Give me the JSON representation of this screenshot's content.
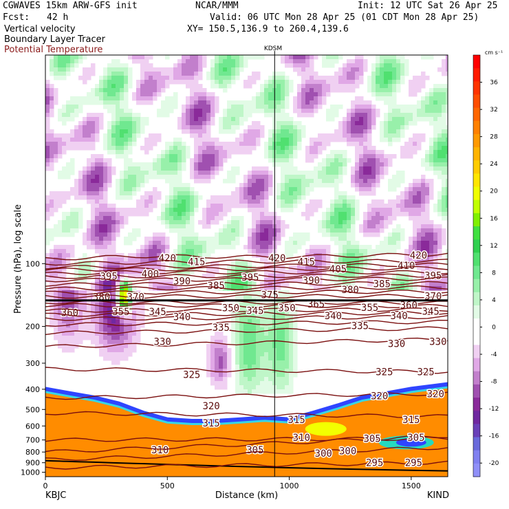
{
  "header": {
    "model": "CGWAVES 15km ARW-GFS init",
    "org": "NCAR/MMM",
    "init": "Init: 12 UTC Sat 26 Apr 25",
    "fcst_label": "Fcst:",
    "fcst_value": "42 h",
    "valid": "Valid: 06 UTC Mon 28 Apr 25 (01 CDT Mon 28 Apr 25)",
    "field1": "Vertical velocity",
    "field2": "Boundary Layer Tracer",
    "field3": "Potential Temperature",
    "xy": "XY= 150.5,136.9 to 260.4,139.6",
    "station_mark": "KDSM"
  },
  "colors": {
    "theta_line": "#7a0e0e",
    "tropo_line": "#000000",
    "frame": "#000000"
  },
  "chart_data": {
    "type": "heatmap",
    "x_axis": {
      "label": "Distance (km)",
      "range": [
        0,
        1650
      ],
      "ticks": [
        0,
        500,
        1000,
        1500
      ],
      "left_station": "KBJC",
      "right_station": "KIND",
      "marker_x": 940
    },
    "y_axis": {
      "label": "Pressure (hPa), log scale",
      "scale": "log",
      "range": [
        1050,
        10
      ],
      "ticks": [
        100,
        200,
        300,
        400,
        500,
        600,
        700,
        800,
        900,
        1000
      ]
    },
    "colorbar": {
      "unit": "cm s⁻¹",
      "tick_labels": [
        36,
        32,
        28,
        24,
        20,
        16,
        12,
        8,
        4,
        0,
        -4,
        -8,
        -12,
        -16,
        -20
      ],
      "levels": [
        {
          "v": 40,
          "c": "#ff0000"
        },
        {
          "v": 38,
          "c": "#ff1a00"
        },
        {
          "v": 36,
          "c": "#ff3300"
        },
        {
          "v": 34,
          "c": "#ff4d00"
        },
        {
          "v": 32,
          "c": "#ff6600"
        },
        {
          "v": 30,
          "c": "#ff8000"
        },
        {
          "v": 28,
          "c": "#ff9900"
        },
        {
          "v": 26,
          "c": "#ffb300"
        },
        {
          "v": 24,
          "c": "#ffcc00"
        },
        {
          "v": 22,
          "c": "#ffe600"
        },
        {
          "v": 20,
          "c": "#f0ff00"
        },
        {
          "v": 18,
          "c": "#c0ff00"
        },
        {
          "v": 16,
          "c": "#80f000"
        },
        {
          "v": 14,
          "c": "#40e040"
        },
        {
          "v": 12,
          "c": "#30d050"
        },
        {
          "v": 10,
          "c": "#50e070"
        },
        {
          "v": 8,
          "c": "#70e890"
        },
        {
          "v": 6,
          "c": "#98f0aa"
        },
        {
          "v": 4,
          "c": "#bff6c8"
        },
        {
          "v": 2,
          "c": "#e2fbe6"
        },
        {
          "v": 0,
          "c": "#ffffff"
        },
        {
          "v": -2,
          "c": "#ffffff"
        },
        {
          "v": -4,
          "c": "#f0d0f2"
        },
        {
          "v": -6,
          "c": "#e0a8e6"
        },
        {
          "v": -8,
          "c": "#c27fcc"
        },
        {
          "v": -10,
          "c": "#a050b0"
        },
        {
          "v": -12,
          "c": "#8a2a9a"
        },
        {
          "v": -14,
          "c": "#7028a0"
        },
        {
          "v": -16,
          "c": "#6a40b8"
        },
        {
          "v": -18,
          "c": "#6a6adb"
        },
        {
          "v": -20,
          "c": "#8080f0"
        },
        {
          "v": -22,
          "c": "#9090f8"
        }
      ]
    },
    "tropopause_pressure_hPa": 150,
    "tracer_top": [
      [
        0,
        400
      ],
      [
        100,
        420
      ],
      [
        200,
        440
      ],
      [
        300,
        470
      ],
      [
        400,
        520
      ],
      [
        500,
        560
      ],
      [
        600,
        570
      ],
      [
        700,
        570
      ],
      [
        800,
        560
      ],
      [
        900,
        550
      ],
      [
        1000,
        560
      ],
      [
        1100,
        520
      ],
      [
        1200,
        480
      ],
      [
        1300,
        440
      ],
      [
        1400,
        420
      ],
      [
        1500,
        400
      ],
      [
        1650,
        380
      ]
    ],
    "theta_lines": [
      {
        "theta": 420,
        "pts": [
          [
            0,
            95
          ],
          [
            400,
            92
          ],
          [
            900,
            93
          ],
          [
            1650,
            90
          ]
        ],
        "labels": [
          [
            500,
            94
          ],
          [
            950,
            94
          ],
          [
            1530,
            91
          ]
        ]
      },
      {
        "theta": 415,
        "pts": [
          [
            0,
            100
          ],
          [
            600,
            98
          ],
          [
            1650,
            97
          ]
        ],
        "labels": [
          [
            620,
            98
          ],
          [
            1070,
            98
          ]
        ]
      },
      {
        "theta": 410,
        "pts": [
          [
            0,
            104
          ],
          [
            700,
            103
          ],
          [
            1650,
            101
          ]
        ],
        "labels": [
          [
            1480,
            102
          ]
        ]
      },
      {
        "theta": 405,
        "pts": [
          [
            0,
            107
          ],
          [
            1650,
            105
          ]
        ],
        "labels": [
          [
            1200,
            106
          ]
        ]
      },
      {
        "theta": 400,
        "pts": [
          [
            0,
            112
          ],
          [
            300,
            110
          ],
          [
            1650,
            110
          ]
        ],
        "labels": [
          [
            430,
            112
          ]
        ]
      },
      {
        "theta": 395,
        "pts": [
          [
            0,
            116
          ],
          [
            300,
            115
          ],
          [
            1650,
            114
          ]
        ],
        "labels": [
          [
            260,
            115
          ],
          [
            840,
            116
          ],
          [
            1590,
            114
          ]
        ]
      },
      {
        "theta": 390,
        "pts": [
          [
            0,
            120
          ],
          [
            1650,
            118
          ]
        ],
        "labels": [
          [
            560,
            121
          ],
          [
            1090,
            120
          ]
        ]
      },
      {
        "theta": 385,
        "pts": [
          [
            0,
            126
          ],
          [
            1650,
            124
          ]
        ],
        "labels": [
          [
            700,
            127
          ],
          [
            1380,
            125
          ]
        ]
      },
      {
        "theta": 380,
        "pts": [
          [
            0,
            132
          ],
          [
            1650,
            130
          ]
        ],
        "labels": [
          [
            230,
            144
          ],
          [
            1250,
            133
          ]
        ]
      },
      {
        "theta": 375,
        "pts": [
          [
            0,
            138
          ],
          [
            1650,
            136
          ]
        ],
        "labels": [
          [
            920,
            141
          ]
        ]
      },
      {
        "theta": 370,
        "pts": [
          [
            0,
            144
          ],
          [
            1650,
            143
          ]
        ],
        "labels": [
          [
            370,
            144
          ],
          [
            1590,
            143
          ]
        ]
      },
      {
        "theta": 365,
        "pts": [
          [
            0,
            153
          ],
          [
            1650,
            154
          ]
        ],
        "labels": [
          [
            1110,
            156
          ]
        ]
      },
      {
        "theta": 360,
        "pts": [
          [
            0,
            158
          ],
          [
            1650,
            160
          ]
        ],
        "labels": [
          [
            100,
            172
          ],
          [
            1490,
            158
          ]
        ]
      },
      {
        "theta": 355,
        "pts": [
          [
            0,
            168
          ],
          [
            1650,
            166
          ]
        ],
        "labels": [
          [
            310,
            170
          ],
          [
            1330,
            162
          ]
        ]
      },
      {
        "theta": 350,
        "pts": [
          [
            0,
            176
          ],
          [
            1650,
            172
          ]
        ],
        "labels": [
          [
            760,
            163
          ],
          [
            990,
            163
          ]
        ]
      },
      {
        "theta": 345,
        "pts": [
          [
            0,
            184
          ],
          [
            1650,
            180
          ]
        ],
        "labels": [
          [
            460,
            170
          ],
          [
            860,
            168
          ],
          [
            1580,
            169
          ]
        ]
      },
      {
        "theta": 340,
        "pts": [
          [
            0,
            196
          ],
          [
            1650,
            190
          ]
        ],
        "labels": [
          [
            560,
            180
          ],
          [
            1180,
            178
          ],
          [
            1450,
            178
          ]
        ]
      },
      {
        "theta": 335,
        "pts": [
          [
            0,
            215
          ],
          [
            1650,
            204
          ]
        ],
        "labels": [
          [
            720,
            202
          ],
          [
            1290,
            198
          ]
        ]
      },
      {
        "theta": 330,
        "pts": [
          [
            0,
            250
          ],
          [
            1650,
            230
          ]
        ],
        "labels": [
          [
            480,
            236
          ],
          [
            1440,
            242
          ],
          [
            1610,
            236
          ]
        ]
      },
      {
        "theta": 325,
        "pts": [
          [
            0,
            320
          ],
          [
            1650,
            330
          ]
        ],
        "labels": [
          [
            600,
            340
          ],
          [
            1390,
            330
          ],
          [
            1560,
            330
          ]
        ]
      },
      {
        "theta": 320,
        "pts": [
          [
            0,
            440
          ],
          [
            1650,
            420
          ]
        ],
        "labels": [
          [
            680,
            480
          ],
          [
            1370,
            430
          ],
          [
            1600,
            420
          ]
        ]
      },
      {
        "theta": 315,
        "pts": [
          [
            0,
            520
          ],
          [
            1650,
            540
          ]
        ],
        "labels": [
          [
            680,
            580
          ],
          [
            1030,
            560
          ],
          [
            1500,
            560
          ]
        ]
      },
      {
        "theta": 310,
        "pts": [
          [
            0,
            700
          ],
          [
            1650,
            690
          ]
        ],
        "labels": [
          [
            470,
            780
          ],
          [
            1050,
            680
          ]
        ]
      },
      {
        "theta": 305,
        "pts": [
          [
            0,
            800
          ],
          [
            1650,
            670
          ]
        ],
        "labels": [
          [
            860,
            780
          ],
          [
            1340,
            690
          ],
          [
            1520,
            680
          ]
        ]
      },
      {
        "theta": 300,
        "pts": [
          [
            0,
            870
          ],
          [
            1650,
            760
          ]
        ],
        "labels": [
          [
            1140,
            810
          ],
          [
            1240,
            790
          ]
        ]
      },
      {
        "theta": 295,
        "pts": [
          [
            0,
            950
          ],
          [
            1650,
            900
          ]
        ],
        "labels": [
          [
            1350,
            900
          ],
          [
            1510,
            900
          ]
        ]
      }
    ]
  }
}
